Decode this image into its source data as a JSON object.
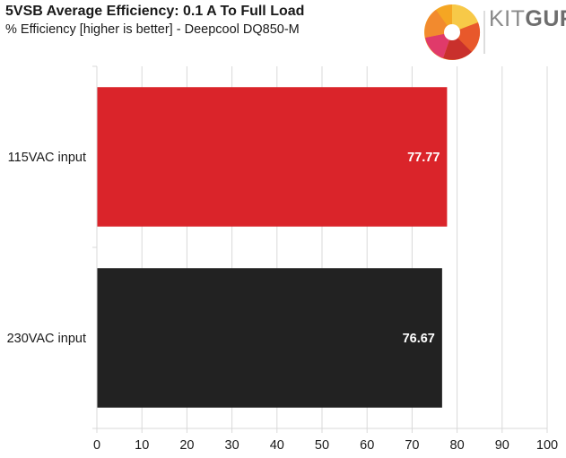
{
  "chart_data": {
    "type": "bar",
    "orientation": "horizontal",
    "title": "5VSB Average Efficiency: 0.1 A To Full Load",
    "subtitle": "% Efficiency [higher is better] - Deepcool DQ850-M",
    "categories": [
      "115VAC input",
      "230VAC input"
    ],
    "values": [
      77.77,
      76.67
    ],
    "data_labels": [
      "77.77",
      "76.67"
    ],
    "bar_colors": [
      "#da242a",
      "#222222"
    ],
    "xlim": [
      0,
      100
    ],
    "x_ticks": [
      "0",
      "10",
      "20",
      "30",
      "40",
      "50",
      "60",
      "70",
      "80",
      "90",
      "100"
    ],
    "grid": "vertical",
    "legend": "none"
  },
  "logo": {
    "text_kit": "KIT",
    "text_guru": "GURU"
  }
}
